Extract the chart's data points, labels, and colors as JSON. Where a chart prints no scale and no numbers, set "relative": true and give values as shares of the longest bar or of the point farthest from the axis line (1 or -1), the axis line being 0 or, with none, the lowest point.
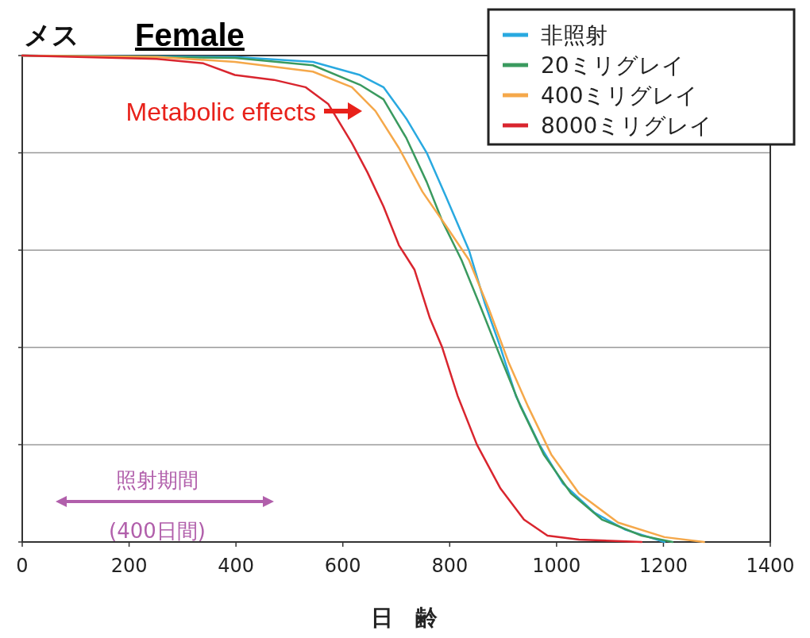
{
  "chart_data": {
    "type": "line",
    "title": "メス",
    "subtitle": "Female",
    "xlabel": "日　齢",
    "relative": true,
    "xlim": [
      0,
      1400
    ],
    "xticks": [
      0,
      200,
      400,
      600,
      800,
      1000,
      1200,
      1400
    ],
    "grid": "y",
    "legend": "top right",
    "marker": "none",
    "line_style": "solid",
    "annotations": [
      "Metabolic effects",
      "照射期間",
      "(400日間)"
    ],
    "series": [
      {
        "name": "非照射",
        "color": "#29a9e0",
        "x": [
          0,
          398,
          544,
          632,
          676,
          719,
          757,
          793,
          836,
          866,
          895,
          924,
          968,
          1012,
          1071,
          1129,
          1188,
          1202
        ],
        "values": [
          1,
          0.997,
          0.987,
          0.96,
          0.935,
          0.87,
          0.8,
          0.71,
          0.6,
          0.49,
          0.4,
          0.3,
          0.2,
          0.12,
          0.06,
          0.025,
          0.005,
          0
        ]
      },
      {
        "name": "20ミリグレイ",
        "color": "#3a9a5f",
        "x": [
          0,
          398,
          544,
          632,
          676,
          719,
          757,
          786,
          822,
          859,
          895,
          932,
          976,
          1027,
          1085,
          1159,
          1217
        ],
        "values": [
          1,
          0.995,
          0.98,
          0.94,
          0.91,
          0.83,
          0.74,
          0.66,
          0.58,
          0.48,
          0.38,
          0.28,
          0.18,
          0.1,
          0.046,
          0.013,
          0
        ]
      },
      {
        "name": "400ミリグレイ",
        "color": "#f5a84a",
        "x": [
          0,
          252,
          398,
          544,
          617,
          661,
          705,
          749,
          793,
          836,
          873,
          910,
          946,
          990,
          1042,
          1115,
          1202,
          1276
        ],
        "values": [
          1,
          0.997,
          0.987,
          0.967,
          0.935,
          0.886,
          0.81,
          0.72,
          0.65,
          0.58,
          0.48,
          0.37,
          0.28,
          0.18,
          0.1,
          0.04,
          0.01,
          0
        ]
      },
      {
        "name": "8000ミリグレイ",
        "color": "#d9252e",
        "x": [
          0,
          252,
          339,
          398,
          471,
          530,
          573,
          617,
          646,
          676,
          705,
          734,
          763,
          786,
          815,
          851,
          895,
          939,
          983,
          1042,
          1159
        ],
        "values": [
          1,
          0.993,
          0.984,
          0.96,
          0.95,
          0.935,
          0.9,
          0.82,
          0.76,
          0.69,
          0.61,
          0.56,
          0.46,
          0.4,
          0.3,
          0.2,
          0.11,
          0.046,
          0.013,
          0.005,
          0
        ]
      }
    ]
  }
}
